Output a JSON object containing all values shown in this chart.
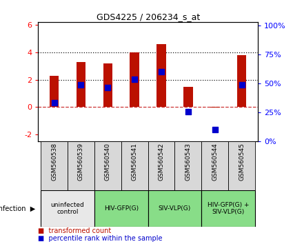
{
  "title": "GDS4225 / 206234_s_at",
  "samples": [
    "GSM560538",
    "GSM560539",
    "GSM560540",
    "GSM560541",
    "GSM560542",
    "GSM560543",
    "GSM560544",
    "GSM560545"
  ],
  "red_values": [
    2.3,
    3.3,
    3.2,
    4.0,
    4.6,
    1.5,
    -0.05,
    3.8
  ],
  "blue_values": [
    0.3,
    1.65,
    1.45,
    2.05,
    2.6,
    -0.35,
    -1.65,
    1.65
  ],
  "ylim": [
    -2.5,
    6.2
  ],
  "y2lim": [
    0,
    103.3
  ],
  "yticks": [
    -2,
    0,
    2,
    4,
    6
  ],
  "y2ticks": [
    0,
    25,
    50,
    75,
    100
  ],
  "y2tick_labels": [
    "0%",
    "25%",
    "50%",
    "75%",
    "100%"
  ],
  "hlines": [
    0.0,
    2.0,
    4.0
  ],
  "hline_styles": [
    "dashed",
    "dotted",
    "dotted"
  ],
  "hline_colors": [
    "#cc3333",
    "#111111",
    "#111111"
  ],
  "bar_color": "#bb1100",
  "dot_color": "#0000cc",
  "groups": [
    {
      "label": "uninfected\ncontrol",
      "start": 0,
      "end": 2,
      "color": "#e8e8e8"
    },
    {
      "label": "HIV-GFP(G)",
      "start": 2,
      "end": 4,
      "color": "#88dd88"
    },
    {
      "label": "SIV-VLP(G)",
      "start": 4,
      "end": 6,
      "color": "#88dd88"
    },
    {
      "label": "HIV-GFP(G) +\nSIV-VLP(G)",
      "start": 6,
      "end": 8,
      "color": "#88dd88"
    }
  ],
  "bar_width": 0.35,
  "dot_size": 28,
  "legend_red": "transformed count",
  "legend_blue": "percentile rank within the sample",
  "infection_label": "infection"
}
